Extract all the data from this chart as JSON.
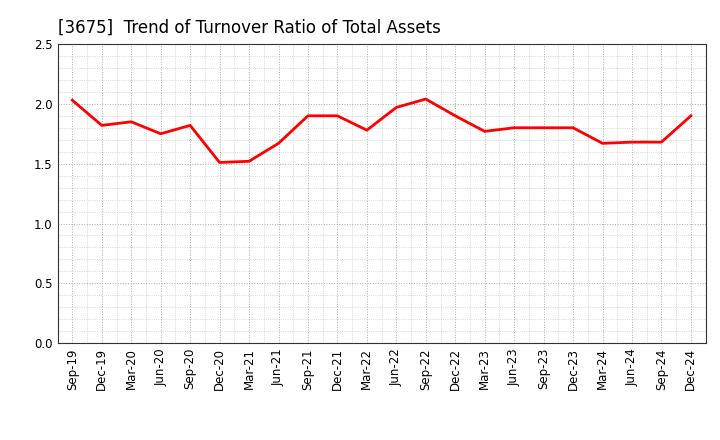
{
  "title": "[3675]  Trend of Turnover Ratio of Total Assets",
  "labels": [
    "Sep-19",
    "Dec-19",
    "Mar-20",
    "Jun-20",
    "Sep-20",
    "Dec-20",
    "Mar-21",
    "Jun-21",
    "Sep-21",
    "Dec-21",
    "Mar-22",
    "Jun-22",
    "Sep-22",
    "Dec-22",
    "Mar-23",
    "Jun-23",
    "Sep-23",
    "Dec-23",
    "Mar-24",
    "Jun-24",
    "Sep-24",
    "Dec-24"
  ],
  "values": [
    2.03,
    1.82,
    1.85,
    1.75,
    1.82,
    1.51,
    1.52,
    1.67,
    1.9,
    1.9,
    1.78,
    1.97,
    2.04,
    1.9,
    1.77,
    1.8,
    1.8,
    1.8,
    1.67,
    1.68,
    1.68,
    1.9
  ],
  "line_color": "#ff0000",
  "line_width": 2.0,
  "ylim": [
    0.0,
    2.5
  ],
  "yticks": [
    0.0,
    0.5,
    1.0,
    1.5,
    2.0,
    2.5
  ],
  "grid_color": "#aaaaaa",
  "background_color": "#ffffff",
  "title_fontsize": 12,
  "tick_fontsize": 8.5
}
